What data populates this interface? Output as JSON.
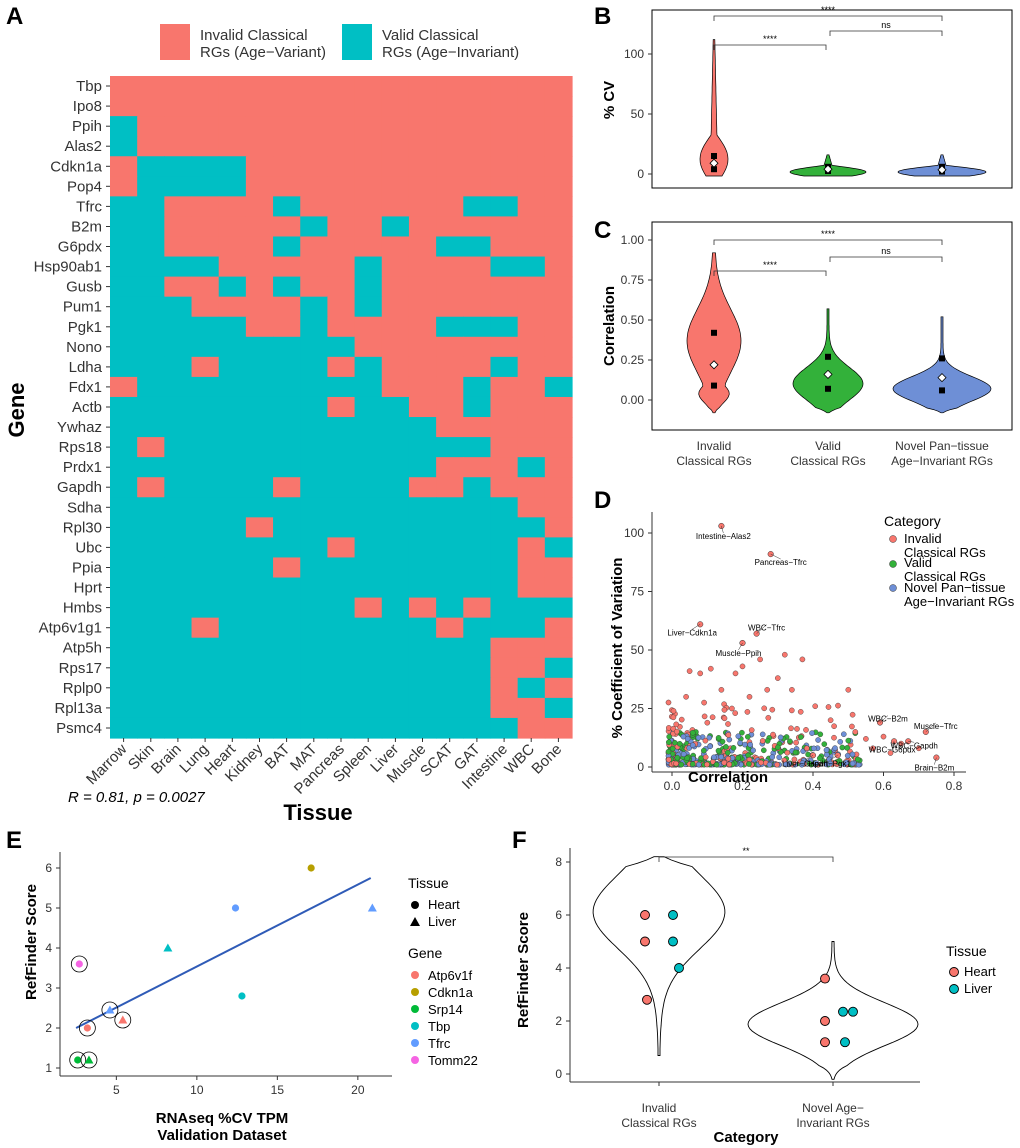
{
  "colors": {
    "invalid": "#F8766D",
    "valid": "#00BFC4",
    "green": "#33b13a",
    "blue": "#6e8fd6",
    "line": "#2F5BB7"
  },
  "panels": {
    "a": "A",
    "b": "B",
    "c": "C",
    "d": "D",
    "e": "E",
    "f": "F"
  },
  "chart_data": [
    {
      "panel": "A",
      "type": "heatmap",
      "xlabel": "Tissue",
      "ylabel": "Gene",
      "legend": [
        "Invalid Classical RGs (Age−Variant)",
        "Valid Classical RGs (Age−Invariant)"
      ],
      "legend_lines": [
        [
          "Invalid Classical",
          "RGs (Age−Variant)"
        ],
        [
          "Valid Classical",
          "RGs (Age−Invariant)"
        ]
      ],
      "tissues": [
        "Marrow",
        "Skin",
        "Brain",
        "Lung",
        "Heart",
        "Kidney",
        "BAT",
        "MAT",
        "Pancreas",
        "Spleen",
        "Liver",
        "Muscle",
        "SCAT",
        "GAT",
        "Intestine",
        "WBC",
        "Bone"
      ],
      "genes": [
        "Tbp",
        "Ipo8",
        "Ppih",
        "Alas2",
        "Cdkn1a",
        "Pop4",
        "Tfrc",
        "B2m",
        "G6pdx",
        "Hsp90ab1",
        "Gusb",
        "Pum1",
        "Pgk1",
        "Nono",
        "Ldha",
        "Fdx1",
        "Actb",
        "Ywhaz",
        "Rps18",
        "Prdx1",
        "Gapdh",
        "Sdha",
        "Rpl30",
        "Ubc",
        "Ppia",
        "Hprt",
        "Hmbs",
        "Atp6v1g1",
        "Atp5h",
        "Rps17",
        "Rplp0",
        "Rpl13a",
        "Psmc4"
      ],
      "matrix": [
        "11111111111111111",
        "11111111111111111",
        "01111111111111111",
        "01111111111111111",
        "10000111111111111",
        "10000111111111111",
        "00111101111110011",
        "00111110110111111",
        "00111101111100111",
        "00001111101111001",
        "00110101101111111",
        "00011110101111111",
        "00000110111100011",
        "00000000011111111",
        "00010000101111011",
        "10000000001110110",
        "00000000100110111",
        "00000000000011111",
        "01000000000000111",
        "00000000000011101",
        "01000010000110111",
        "00000000000000011",
        "00000100000000001",
        "00000000100000010",
        "00000010000000011",
        "00000000000000011",
        "00000000010101000",
        "00010000000010001",
        "00000000000000111",
        "00000000000000110",
        "00000000000000101",
        "00000000000000110",
        "00000000000000011"
      ]
    },
    {
      "panel": "B",
      "type": "violin",
      "ylabel": "% CV",
      "ylim": [
        0,
        120
      ],
      "yticks": [
        0,
        50,
        100
      ],
      "groups": [
        {
          "name": "Invalid Classical RGs",
          "q1": 4,
          "median": 9,
          "q3": 15,
          "max": 112
        },
        {
          "name": "Valid Classical RGs",
          "q1": 2.5,
          "median": 4,
          "q3": 6,
          "max": 16
        },
        {
          "name": "Novel Pan-tissue Age-Invariant RGs",
          "q1": 2,
          "median": 3.5,
          "q3": 6,
          "max": 16
        }
      ],
      "comparisons": [
        {
          "pair": [
            0,
            2
          ],
          "label": "****"
        },
        {
          "pair": [
            0,
            1
          ],
          "label": "****"
        },
        {
          "pair": [
            1,
            2
          ],
          "label": "ns"
        }
      ]
    },
    {
      "panel": "C",
      "type": "violin",
      "ylabel": "Correlation",
      "ylim": [
        -0.1,
        1.0
      ],
      "yticks": [
        0.0,
        0.25,
        0.5,
        0.75,
        1.0
      ],
      "xticks": [
        [
          "Invalid",
          "Classical RGs"
        ],
        [
          "Valid",
          "Classical RGs"
        ],
        [
          "Novel Pan−tissue",
          "Age−Invariant RGs"
        ]
      ],
      "groups": [
        {
          "name": "Invalid Classical RGs",
          "q1": 0.09,
          "median": 0.22,
          "q3": 0.42
        },
        {
          "name": "Valid Classical RGs",
          "q1": 0.07,
          "median": 0.16,
          "q3": 0.27
        },
        {
          "name": "Novel Pan-tissue Age-Invariant RGs",
          "q1": 0.06,
          "median": 0.14,
          "q3": 0.26
        }
      ],
      "comparisons": [
        {
          "pair": [
            0,
            2
          ],
          "label": "****"
        },
        {
          "pair": [
            0,
            1
          ],
          "label": "****"
        },
        {
          "pair": [
            1,
            2
          ],
          "label": "ns"
        }
      ]
    },
    {
      "panel": "D",
      "type": "scatter",
      "xlabel": "Correlation",
      "ylabel": "% Coefficient of Variation",
      "xlim": [
        -0.03,
        0.82
      ],
      "ylim": [
        -3,
        110
      ],
      "xticks": [
        0.0,
        0.2,
        0.4,
        0.6,
        0.8
      ],
      "yticks": [
        0,
        25,
        50,
        75,
        100
      ],
      "legend_title": "Category",
      "legend": [
        [
          "Invalid",
          "Classical RGs"
        ],
        [
          "Valid",
          "Classical RGs"
        ],
        [
          "Novel Pan−tissue",
          "Age−Invariant RGs"
        ]
      ],
      "labels": [
        {
          "text": "Intestine−Alas2",
          "x": 0.14,
          "y": 103
        },
        {
          "text": "Pancreas−Tfrc",
          "x": 0.28,
          "y": 91
        },
        {
          "text": "Liver−Cdkn1a",
          "x": 0.08,
          "y": 61
        },
        {
          "text": "WBC−Tfrc",
          "x": 0.24,
          "y": 57
        },
        {
          "text": "Muscle−Ppih",
          "x": 0.2,
          "y": 53
        },
        {
          "text": "WBC−B2m",
          "x": 0.59,
          "y": 19
        },
        {
          "text": "Muscle−Tfrc",
          "x": 0.72,
          "y": 15
        },
        {
          "text": "WBC−G6pdx",
          "x": 0.63,
          "y": 11
        },
        {
          "text": "WBC−Gapdh",
          "x": 0.67,
          "y": 11
        },
        {
          "text": "Brain−B2m",
          "x": 0.75,
          "y": 4
        },
        {
          "text": "Liver−Gapdh",
          "x": 0.4,
          "y": 5
        },
        {
          "text": "Heart−Pgk1",
          "x": 0.47,
          "y": 5
        }
      ]
    },
    {
      "panel": "E",
      "type": "scatter",
      "xlabel": [
        "RNAseq %CV TPM",
        "Validation Dataset"
      ],
      "ylabel": "RefFinder Score",
      "xlim": [
        1.5,
        21.5
      ],
      "ylim": [
        0.9,
        6.3
      ],
      "xticks": [
        5,
        10,
        15,
        20
      ],
      "yticks": [
        1,
        2,
        3,
        4,
        5,
        6
      ],
      "stat": "R = 0.81, p = 0.0027",
      "fit": {
        "x0": 2.5,
        "y0": 2.0,
        "x1": 20.8,
        "y1": 5.75
      },
      "points": [
        {
          "x": 2.7,
          "y": 3.6,
          "gene": "Tomm22",
          "tissue": "Heart",
          "circled": true
        },
        {
          "x": 2.6,
          "y": 1.2,
          "gene": "Srp14",
          "tissue": "Heart",
          "circled": true
        },
        {
          "x": 3.3,
          "y": 1.2,
          "gene": "Srp14",
          "tissue": "Liver",
          "circled": true
        },
        {
          "x": 3.2,
          "y": 2.0,
          "gene": "Atp6v1f",
          "tissue": "Heart",
          "circled": true
        },
        {
          "x": 4.6,
          "y": 2.45,
          "gene": "Tfrc",
          "tissue": "Liver",
          "circled": true
        },
        {
          "x": 5.4,
          "y": 2.2,
          "gene": "Atp6v1f",
          "tissue": "Liver",
          "circled": true
        },
        {
          "x": 8.2,
          "y": 4.0,
          "gene": "Tbp",
          "tissue": "Liver",
          "circled": false
        },
        {
          "x": 12.8,
          "y": 2.8,
          "gene": "Tbp",
          "tissue": "Heart",
          "circled": false
        },
        {
          "x": 12.4,
          "y": 5.0,
          "gene": "Tfrc",
          "tissue": "Heart",
          "circled": false
        },
        {
          "x": 17.1,
          "y": 6.0,
          "gene": "Cdkn1a",
          "tissue": "Heart",
          "circled": false
        },
        {
          "x": 20.9,
          "y": 5.0,
          "gene": "Tfrc",
          "tissue": "Liver",
          "circled": false
        }
      ],
      "legend_tissue_title": "Tissue",
      "legend_tissue": [
        "Heart",
        "Liver"
      ],
      "legend_gene_title": "Gene",
      "legend_gene": [
        {
          "name": "Atp6v1f",
          "color": "#F8766D"
        },
        {
          "name": "Cdkn1a",
          "color": "#B79F00"
        },
        {
          "name": "Srp14",
          "color": "#00BA38"
        },
        {
          "name": "Tbp",
          "color": "#00BFC4"
        },
        {
          "name": "Tfrc",
          "color": "#619CFF"
        },
        {
          "name": "Tomm22",
          "color": "#F564E3"
        }
      ]
    },
    {
      "panel": "F",
      "type": "violin",
      "xlabel": "Category",
      "ylabel": "RefFinder Score",
      "ylim": [
        -0.3,
        8.5
      ],
      "yticks": [
        0,
        2,
        4,
        6,
        8
      ],
      "xticks": [
        [
          "Invalid",
          "Classical RGs"
        ],
        [
          "Novel Age−",
          "Invariant RGs"
        ]
      ],
      "comparison": {
        "label": "**"
      },
      "points": [
        {
          "group": 0,
          "y": 6,
          "tissue": "Heart",
          "dx": -14
        },
        {
          "group": 0,
          "y": 6,
          "tissue": "Liver",
          "dx": 14
        },
        {
          "group": 0,
          "y": 5,
          "tissue": "Heart",
          "dx": -14
        },
        {
          "group": 0,
          "y": 5,
          "tissue": "Liver",
          "dx": 14
        },
        {
          "group": 0,
          "y": 4,
          "tissue": "Liver",
          "dx": 20
        },
        {
          "group": 0,
          "y": 2.8,
          "tissue": "Heart",
          "dx": -12
        },
        {
          "group": 1,
          "y": 3.6,
          "tissue": "Heart",
          "dx": -8
        },
        {
          "group": 1,
          "y": 2.35,
          "tissue": "Liver",
          "dx": 10
        },
        {
          "group": 1,
          "y": 2.35,
          "tissue": "Liver",
          "dx": 20
        },
        {
          "group": 1,
          "y": 2.0,
          "tissue": "Heart",
          "dx": -8
        },
        {
          "group": 1,
          "y": 1.2,
          "tissue": "Heart",
          "dx": -8
        },
        {
          "group": 1,
          "y": 1.2,
          "tissue": "Liver",
          "dx": 12
        }
      ],
      "legend_title": "Tissue",
      "legend": [
        "Heart",
        "Liver"
      ]
    }
  ]
}
